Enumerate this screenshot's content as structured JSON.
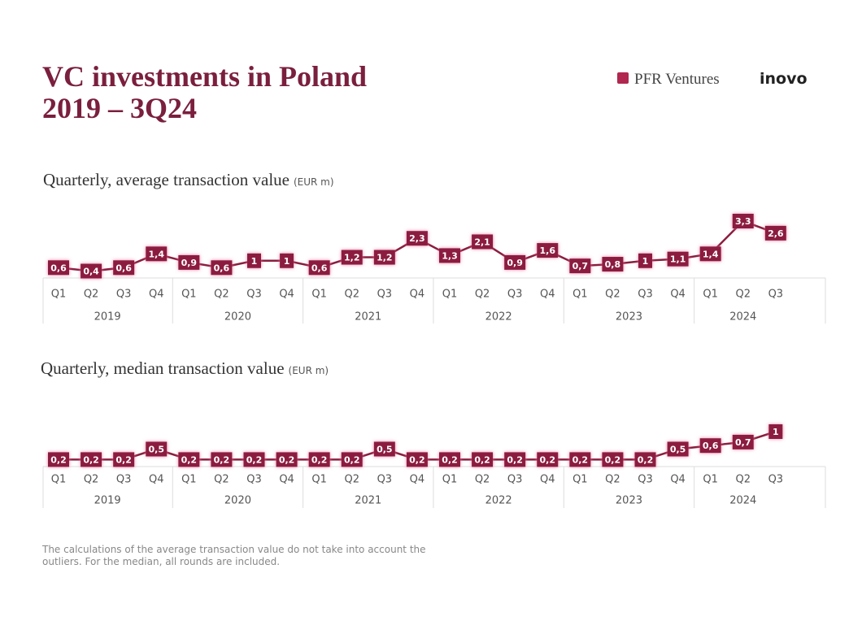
{
  "title_line1": "VC investments in Poland",
  "title_line2": "2019 – 3Q24",
  "brand_pfr": "PFR Ventures",
  "brand_inovo": "inovo",
  "note": "The calculations of the average transaction value do not take into account the outliers. For the median, all rounds are included.",
  "chart_data": [
    {
      "type": "line",
      "title": "Quarterly, average transaction value",
      "unit": "(EUR m)",
      "color": "#8b1e3f",
      "categories": [
        "Q1",
        "Q2",
        "Q3",
        "Q4",
        "Q1",
        "Q2",
        "Q3",
        "Q4",
        "Q1",
        "Q2",
        "Q3",
        "Q4",
        "Q1",
        "Q2",
        "Q3",
        "Q4",
        "Q1",
        "Q2",
        "Q3",
        "Q4",
        "Q1",
        "Q2",
        "Q3"
      ],
      "groups": [
        "2019",
        "2020",
        "2021",
        "2022",
        "2023",
        "2024"
      ],
      "values": [
        0.6,
        0.4,
        0.6,
        1.4,
        0.9,
        0.6,
        1,
        1,
        0.6,
        1.2,
        1.2,
        2.3,
        1.3,
        2.1,
        0.9,
        1.6,
        0.7,
        0.8,
        1,
        1.1,
        1.4,
        3.3,
        2.6
      ],
      "value_labels": [
        "0,6",
        "0,4",
        "0,6",
        "1,4",
        "0,9",
        "0,6",
        "1",
        "1",
        "0,6",
        "1,2",
        "1,2",
        "2,3",
        "1,3",
        "2,1",
        "0,9",
        "1,6",
        "0,7",
        "0,8",
        "1",
        "1,1",
        "1,4",
        "3,3",
        "2,6"
      ]
    },
    {
      "type": "line",
      "title": "Quarterly, median transaction value",
      "unit": "(EUR m)",
      "color": "#8b1e3f",
      "categories": [
        "Q1",
        "Q2",
        "Q3",
        "Q4",
        "Q1",
        "Q2",
        "Q3",
        "Q4",
        "Q1",
        "Q2",
        "Q3",
        "Q4",
        "Q1",
        "Q2",
        "Q3",
        "Q4",
        "Q1",
        "Q2",
        "Q3",
        "Q4",
        "Q1",
        "Q2",
        "Q3"
      ],
      "groups": [
        "2019",
        "2020",
        "2021",
        "2022",
        "2023",
        "2024"
      ],
      "values": [
        0.2,
        0.2,
        0.2,
        0.5,
        0.2,
        0.2,
        0.2,
        0.2,
        0.2,
        0.2,
        0.5,
        0.2,
        0.2,
        0.2,
        0.2,
        0.2,
        0.2,
        0.2,
        0.2,
        0.5,
        0.6,
        0.7,
        1
      ],
      "value_labels": [
        "0,2",
        "0,2",
        "0,2",
        "0,5",
        "0,2",
        "0,2",
        "0,2",
        "0,2",
        "0,2",
        "0,2",
        "0,5",
        "0,2",
        "0,2",
        "0,2",
        "0,2",
        "0,2",
        "0,2",
        "0,2",
        "0,2",
        "0,5",
        "0,6",
        "0,7",
        "1"
      ]
    }
  ]
}
